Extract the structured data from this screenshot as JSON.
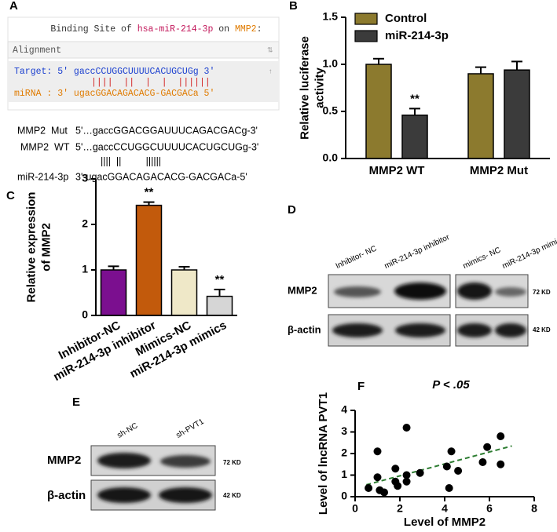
{
  "panel_labels": [
    "A",
    "B",
    "C",
    "D",
    "E",
    "F"
  ],
  "alignment": {
    "title": [
      "Binding Site of ",
      "hsa-miR-214-3p",
      " on ",
      "MMP2",
      ":"
    ],
    "header": "Alignment",
    "target": "Target: 5' gaccCCUGGCUUUUCACUGCUGg 3'",
    "pairs": "||||  ||  |  |  ||||||",
    "mirna": "miRNA : 3' ugacGGACAGACACG-GACGACa 5'",
    "mut_label": "MMP2  Mut",
    "mut_seq": "5'…gaccGGACGGAUUUCAGACGACg-3'",
    "wt_label": "MMP2  WT",
    "wt_seq": "5'…gaccCCUGGCUUUUCACUGCUGg-3'",
    "pairs2": "||||  ||         ||||||",
    "mir_label": "miR-214-3p",
    "mir_seq": "3'-ugacGGACAGACACG-GACGACa-5'"
  },
  "chart_data": [
    {
      "type": "bar",
      "ylabel": [
        "Relative luciferase",
        "activity"
      ],
      "categories": [
        "MMP2 WT",
        "MMP2 Mut"
      ],
      "series": [
        {
          "name": "Control",
          "color": "#8c7a2e",
          "values": [
            1.0,
            0.9
          ],
          "errors": [
            0.06,
            0.07
          ],
          "annotations": [
            null,
            null
          ]
        },
        {
          "name": "miR-214-3p",
          "color": "#3b3b3b",
          "values": [
            0.46,
            0.94
          ],
          "errors": [
            0.07,
            0.09
          ],
          "annotations": [
            "**",
            null
          ]
        }
      ],
      "ylim": [
        0,
        1.5
      ],
      "yticks": [
        {
          "value": 0,
          "label": "0.0"
        },
        0.5,
        {
          "value": 1,
          "label": "1.0"
        },
        1.5
      ],
      "legend": "upper left"
    },
    {
      "type": "bar",
      "ylabel": [
        "Relative expression",
        "of MMP2"
      ],
      "categories": [
        "Inhibitor-NC",
        "miR-214-3p inhibitor",
        "Mimics-NC",
        "miR-214-3p mimics"
      ],
      "values": [
        1.0,
        2.42,
        1.0,
        0.42
      ],
      "errors": [
        0.08,
        0.07,
        0.07,
        0.15
      ],
      "annotations": [
        null,
        "**",
        null,
        "**"
      ],
      "colors": [
        "#7b0f8f",
        "#c25a0c",
        "#efe8c8",
        "#d6d6d6"
      ],
      "ylim": [
        0,
        3
      ],
      "yticks": [
        0,
        1,
        2,
        3
      ]
    },
    {
      "type": "scatter",
      "title": "P < .05",
      "xlabel": "Level of MMP2",
      "ylabel": "Level of lncRNA PVT1",
      "x": [
        0.6,
        1.0,
        1.0,
        1.1,
        1.3,
        1.8,
        1.8,
        1.9,
        2.3,
        2.3,
        2.3,
        2.9,
        4.1,
        4.2,
        4.3,
        4.6,
        5.7,
        5.9,
        6.5,
        6.5
      ],
      "y": [
        0.4,
        2.1,
        0.9,
        0.3,
        0.2,
        1.3,
        0.7,
        0.5,
        3.2,
        1.0,
        0.7,
        1.1,
        1.4,
        0.4,
        2.1,
        1.2,
        1.6,
        2.3,
        2.8,
        1.5
      ],
      "color": "#000000",
      "trendline": {
        "x": [
          0.5,
          7
        ],
        "y": [
          0.55,
          2.35
        ],
        "color": "#2e7d32"
      },
      "xlim": [
        0,
        8
      ],
      "xticks": [
        0,
        2,
        4,
        6,
        8
      ],
      "ylim": [
        0,
        4
      ],
      "yticks": [
        0,
        1,
        2,
        3,
        4
      ]
    }
  ],
  "blot_d": {
    "lanes": [
      "Inhibitor- NC",
      "miR-214-3p inhibitor",
      "mimics- NC",
      "miR-214-3p mimics"
    ],
    "rows": [
      "MMP2",
      "β-actin"
    ],
    "sizes": [
      "72 KD",
      "42 KD"
    ]
  },
  "blot_e": {
    "lanes": [
      "sh-NC",
      "sh-PVT1"
    ],
    "rows": [
      "MMP2",
      "β-actin"
    ],
    "sizes": [
      "72 KD",
      "42 KD"
    ]
  }
}
